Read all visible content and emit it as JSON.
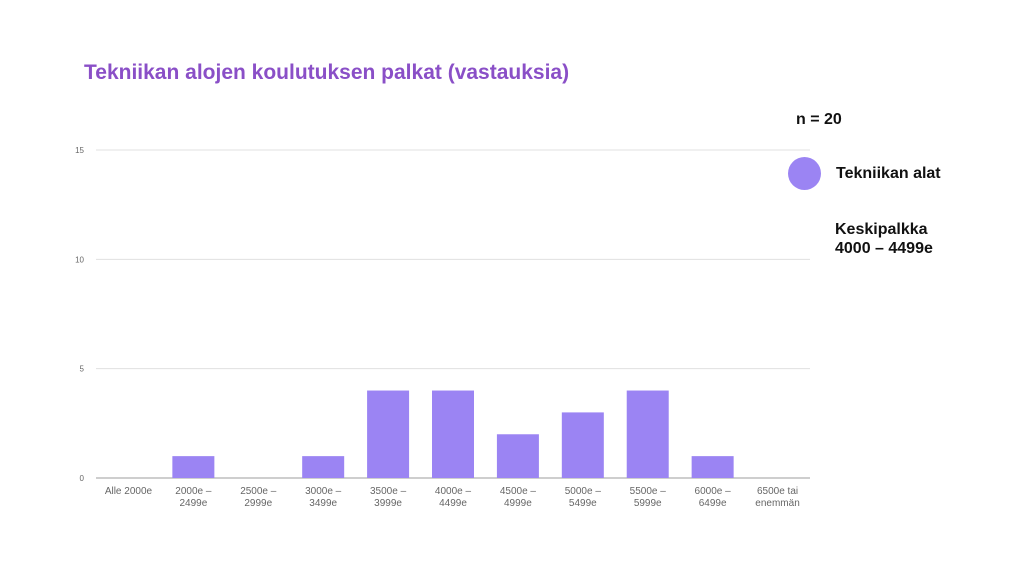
{
  "title": "Tekniikan alojen koulutuksen palkat (vastauksia)",
  "side_panel": {
    "n_label": "n = 20",
    "legend_label": "Tekniikan alat",
    "average_heading": "Keskipalkka",
    "average_value": "4000 – 4499e"
  },
  "colors": {
    "title": "#8a4fc7",
    "bar": "#9b84f3",
    "grid": "#e0e0e0",
    "tick_text": "#666666"
  },
  "chart_data": {
    "type": "bar",
    "categories": [
      [
        "Alle 2000e"
      ],
      [
        "2000e –",
        "2499e"
      ],
      [
        "2500e –",
        "2999e"
      ],
      [
        "3000e –",
        "3499e"
      ],
      [
        "3500e –",
        "3999e"
      ],
      [
        "4000e –",
        "4499e"
      ],
      [
        "4500e –",
        "4999e"
      ],
      [
        "5000e –",
        "5499e"
      ],
      [
        "5500e –",
        "5999e"
      ],
      [
        "6000e –",
        "6499e"
      ],
      [
        "6500e tai",
        "enemmän"
      ]
    ],
    "series": [
      {
        "name": "Tekniikan alat",
        "values": [
          0,
          1,
          0,
          1,
          4,
          4,
          2,
          3,
          4,
          1,
          0
        ]
      }
    ],
    "yticks": [
      0,
      5,
      10,
      15
    ],
    "ylim": [
      0,
      15
    ],
    "grid": true,
    "legend_position": "right"
  }
}
